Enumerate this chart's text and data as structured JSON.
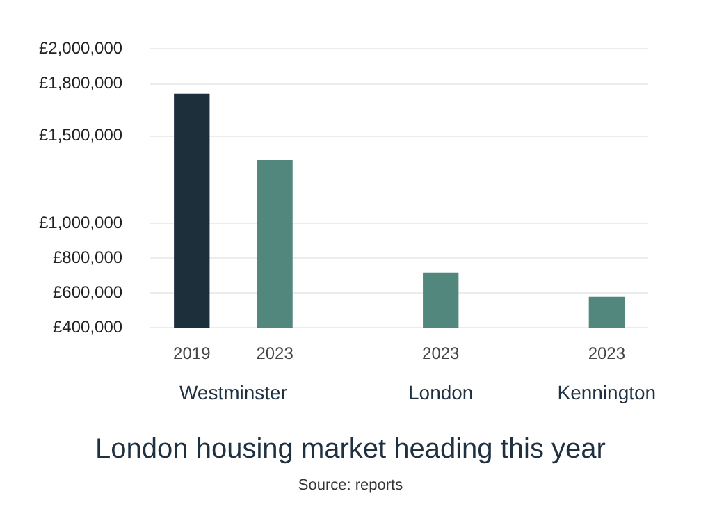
{
  "chart_data": {
    "type": "bar",
    "title": "London housing market heading this year",
    "categories": [
      "2019",
      "2023",
      null,
      "2023",
      null,
      "2023"
    ],
    "values": [
      1740000,
      1360000,
      null,
      715000,
      null,
      575000
    ],
    "colors": [
      "#1e2f3c",
      "#52877e",
      "#52877e",
      "#52877e",
      "#52877e",
      "#52877e"
    ],
    "ylim": [
      400000,
      2000000
    ],
    "yticks": [
      {
        "value": 400000,
        "label": "£400,000"
      },
      {
        "value": 600000,
        "label": "£600,000"
      },
      {
        "value": 800000,
        "label": "£800,000"
      },
      {
        "value": 1000000,
        "label": "£1,000,000"
      },
      {
        "value": 1500000,
        "label": "£1,500,000"
      },
      {
        "value": 1800000,
        "label": "£1,800,000"
      },
      {
        "value": 2000000,
        "label": "£2,000,000"
      }
    ],
    "grid": "y",
    "legend": false,
    "annotations": [
      "Westminster",
      "London",
      "Kennington",
      "Source: reports"
    ]
  }
}
